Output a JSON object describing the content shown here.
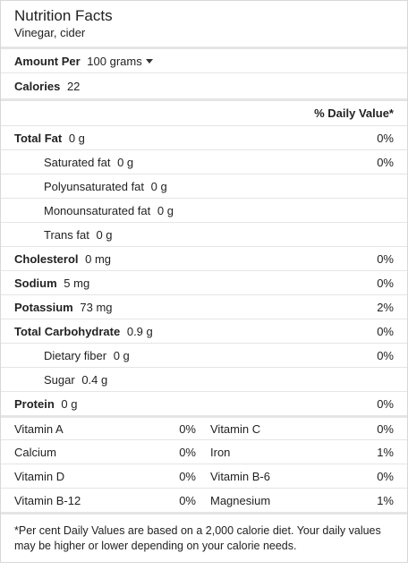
{
  "header": {
    "title": "Nutrition Facts",
    "subtitle": "Vinegar, cider"
  },
  "amount": {
    "label": "Amount Per",
    "value": "100 grams"
  },
  "calories": {
    "label": "Calories",
    "value": "22"
  },
  "dv_header": "% Daily Value*",
  "nutrients": [
    {
      "label": "Total Fat",
      "amount": "0 g",
      "dv": "0%"
    },
    {
      "label": "Saturated fat",
      "amount": "0 g",
      "dv": "0%"
    },
    {
      "label": "Polyunsaturated fat",
      "amount": "0 g",
      "dv": ""
    },
    {
      "label": "Monounsaturated fat",
      "amount": "0 g",
      "dv": ""
    },
    {
      "label": "Trans fat",
      "amount": "0 g",
      "dv": ""
    },
    {
      "label": "Cholesterol",
      "amount": "0 mg",
      "dv": "0%"
    },
    {
      "label": "Sodium",
      "amount": "5 mg",
      "dv": "0%"
    },
    {
      "label": "Potassium",
      "amount": "73 mg",
      "dv": "2%"
    },
    {
      "label": "Total Carbohydrate",
      "amount": "0.9 g",
      "dv": "0%"
    },
    {
      "label": "Dietary fiber",
      "amount": "0 g",
      "dv": "0%"
    },
    {
      "label": "Sugar",
      "amount": "0.4 g",
      "dv": ""
    },
    {
      "label": "Protein",
      "amount": "0 g",
      "dv": "0%"
    }
  ],
  "vitamins": [
    {
      "left_label": "Vitamin A",
      "left_dv": "0%",
      "right_label": "Vitamin C",
      "right_dv": "0%"
    },
    {
      "left_label": "Calcium",
      "left_dv": "0%",
      "right_label": "Iron",
      "right_dv": "1%"
    },
    {
      "left_label": "Vitamin D",
      "left_dv": "0%",
      "right_label": "Vitamin B-6",
      "right_dv": "0%"
    },
    {
      "left_label": "Vitamin B-12",
      "left_dv": "0%",
      "right_label": "Magnesium",
      "right_dv": "1%"
    }
  ],
  "footnote": "*Per cent Daily Values are based on a 2,000 calorie diet. Your daily values may be higher or lower depending on your calorie needs."
}
